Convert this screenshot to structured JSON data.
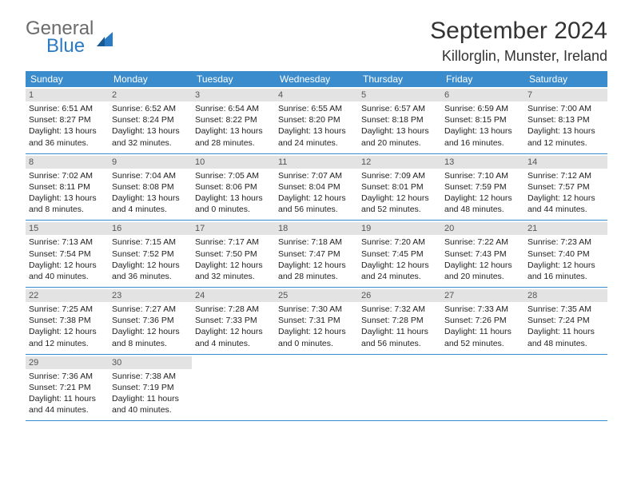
{
  "logo": {
    "general": "General",
    "blue": "Blue"
  },
  "title": "September 2024",
  "location": "Killorglin, Munster, Ireland",
  "colors": {
    "header_bg": "#3a8ccd",
    "header_text": "#ffffff",
    "daynum_bg": "#e3e3e3",
    "text": "#222222",
    "logo_gray": "#6b6b6b",
    "logo_blue": "#2b7bc4",
    "row_border": "#3a8ccd"
  },
  "day_headers": [
    "Sunday",
    "Monday",
    "Tuesday",
    "Wednesday",
    "Thursday",
    "Friday",
    "Saturday"
  ],
  "weeks": [
    [
      {
        "n": "1",
        "sunrise": "6:51 AM",
        "sunset": "8:27 PM",
        "day_h": "13",
        "day_m": "36"
      },
      {
        "n": "2",
        "sunrise": "6:52 AM",
        "sunset": "8:24 PM",
        "day_h": "13",
        "day_m": "32"
      },
      {
        "n": "3",
        "sunrise": "6:54 AM",
        "sunset": "8:22 PM",
        "day_h": "13",
        "day_m": "28"
      },
      {
        "n": "4",
        "sunrise": "6:55 AM",
        "sunset": "8:20 PM",
        "day_h": "13",
        "day_m": "24"
      },
      {
        "n": "5",
        "sunrise": "6:57 AM",
        "sunset": "8:18 PM",
        "day_h": "13",
        "day_m": "20"
      },
      {
        "n": "6",
        "sunrise": "6:59 AM",
        "sunset": "8:15 PM",
        "day_h": "13",
        "day_m": "16"
      },
      {
        "n": "7",
        "sunrise": "7:00 AM",
        "sunset": "8:13 PM",
        "day_h": "13",
        "day_m": "12"
      }
    ],
    [
      {
        "n": "8",
        "sunrise": "7:02 AM",
        "sunset": "8:11 PM",
        "day_h": "13",
        "day_m": "8"
      },
      {
        "n": "9",
        "sunrise": "7:04 AM",
        "sunset": "8:08 PM",
        "day_h": "13",
        "day_m": "4"
      },
      {
        "n": "10",
        "sunrise": "7:05 AM",
        "sunset": "8:06 PM",
        "day_h": "13",
        "day_m": "0"
      },
      {
        "n": "11",
        "sunrise": "7:07 AM",
        "sunset": "8:04 PM",
        "day_h": "12",
        "day_m": "56"
      },
      {
        "n": "12",
        "sunrise": "7:09 AM",
        "sunset": "8:01 PM",
        "day_h": "12",
        "day_m": "52"
      },
      {
        "n": "13",
        "sunrise": "7:10 AM",
        "sunset": "7:59 PM",
        "day_h": "12",
        "day_m": "48"
      },
      {
        "n": "14",
        "sunrise": "7:12 AM",
        "sunset": "7:57 PM",
        "day_h": "12",
        "day_m": "44"
      }
    ],
    [
      {
        "n": "15",
        "sunrise": "7:13 AM",
        "sunset": "7:54 PM",
        "day_h": "12",
        "day_m": "40"
      },
      {
        "n": "16",
        "sunrise": "7:15 AM",
        "sunset": "7:52 PM",
        "day_h": "12",
        "day_m": "36"
      },
      {
        "n": "17",
        "sunrise": "7:17 AM",
        "sunset": "7:50 PM",
        "day_h": "12",
        "day_m": "32"
      },
      {
        "n": "18",
        "sunrise": "7:18 AM",
        "sunset": "7:47 PM",
        "day_h": "12",
        "day_m": "28"
      },
      {
        "n": "19",
        "sunrise": "7:20 AM",
        "sunset": "7:45 PM",
        "day_h": "12",
        "day_m": "24"
      },
      {
        "n": "20",
        "sunrise": "7:22 AM",
        "sunset": "7:43 PM",
        "day_h": "12",
        "day_m": "20"
      },
      {
        "n": "21",
        "sunrise": "7:23 AM",
        "sunset": "7:40 PM",
        "day_h": "12",
        "day_m": "16"
      }
    ],
    [
      {
        "n": "22",
        "sunrise": "7:25 AM",
        "sunset": "7:38 PM",
        "day_h": "12",
        "day_m": "12"
      },
      {
        "n": "23",
        "sunrise": "7:27 AM",
        "sunset": "7:36 PM",
        "day_h": "12",
        "day_m": "8"
      },
      {
        "n": "24",
        "sunrise": "7:28 AM",
        "sunset": "7:33 PM",
        "day_h": "12",
        "day_m": "4"
      },
      {
        "n": "25",
        "sunrise": "7:30 AM",
        "sunset": "7:31 PM",
        "day_h": "12",
        "day_m": "0"
      },
      {
        "n": "26",
        "sunrise": "7:32 AM",
        "sunset": "7:28 PM",
        "day_h": "11",
        "day_m": "56"
      },
      {
        "n": "27",
        "sunrise": "7:33 AM",
        "sunset": "7:26 PM",
        "day_h": "11",
        "day_m": "52"
      },
      {
        "n": "28",
        "sunrise": "7:35 AM",
        "sunset": "7:24 PM",
        "day_h": "11",
        "day_m": "48"
      }
    ],
    [
      {
        "n": "29",
        "sunrise": "7:36 AM",
        "sunset": "7:21 PM",
        "day_h": "11",
        "day_m": "44"
      },
      {
        "n": "30",
        "sunrise": "7:38 AM",
        "sunset": "7:19 PM",
        "day_h": "11",
        "day_m": "40"
      },
      null,
      null,
      null,
      null,
      null
    ]
  ],
  "labels": {
    "sunrise": "Sunrise:",
    "sunset": "Sunset:",
    "daylight": "Daylight:",
    "hours": "hours",
    "and": "and",
    "minutes": "minutes."
  }
}
